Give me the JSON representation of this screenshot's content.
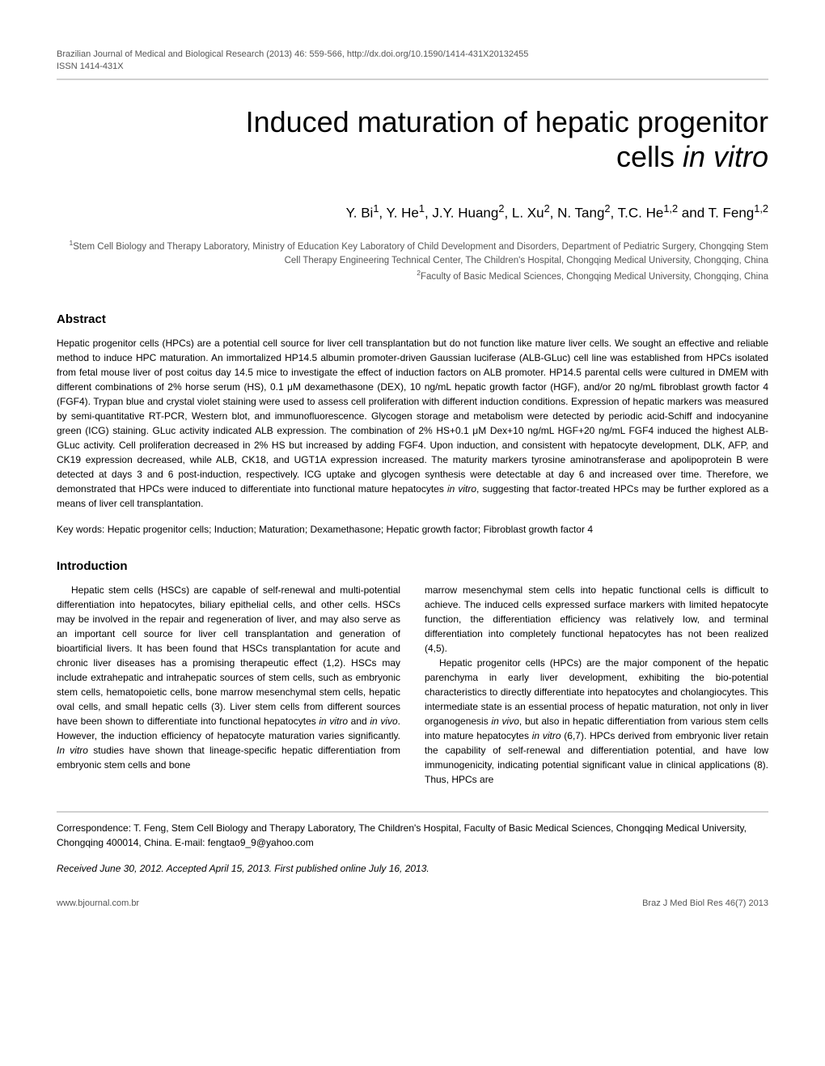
{
  "journal": {
    "header_line1": "Brazilian Journal of Medical and Biological Research (2013) 46: 559-566, http://dx.doi.org/10.1590/1414-431X20132455",
    "header_line2": "ISSN 1414-431X"
  },
  "article": {
    "title_line1": "Induced maturation of hepatic progenitor",
    "title_line2_prefix": "cells ",
    "title_line2_italic": "in vitro",
    "authors_html": "Y. Bi<sup>1</sup>, Y. He<sup>1</sup>, J.Y. Huang<sup>2</sup>, L. Xu<sup>2</sup>, N. Tang<sup>2</sup>, T.C. He<sup>1,2</sup> and T. Feng<sup>1,2</sup>",
    "affiliations": [
      "<sup>1</sup>Stem Cell Biology and Therapy Laboratory, Ministry of Education Key Laboratory of Child Development and Disorders, Department of Pediatric Surgery, Chongqing Stem Cell Therapy Engineering Technical Center, The Children's Hospital, Chongqing Medical University, Chongqing, China",
      "<sup>2</sup>Faculty of Basic Medical Sciences, Chongqing Medical University, Chongqing, China"
    ]
  },
  "abstract": {
    "heading": "Abstract",
    "body": "Hepatic progenitor cells (HPCs) are a potential cell source for liver cell transplantation but do not function like mature liver cells. We sought an effective and reliable method to induce HPC maturation. An immortalized HP14.5 albumin promoter-driven Gaussian luciferase (ALB-GLuc) cell line was established from HPCs isolated from fetal mouse liver of post coitus day 14.5 mice to investigate the effect of induction factors on ALB promoter. HP14.5 parental cells were cultured in DMEM with different combinations of 2% horse serum (HS), 0.1 μM dexamethasone (DEX), 10 ng/mL hepatic growth factor (HGF), and/or 20 ng/mL fibroblast growth factor 4 (FGF4). Trypan blue and crystal violet staining were used to assess cell proliferation with different induction conditions. Expression of hepatic markers was measured by semi-quantitative RT-PCR, Western blot, and immunofluorescence. Glycogen storage and metabolism were detected by periodic acid-Schiff and indocyanine green (ICG) staining. GLuc activity indicated ALB expression. The combination of 2% HS+0.1 μM Dex+10 ng/mL HGF+20 ng/mL FGF4 induced the highest ALB-GLuc activity. Cell proliferation decreased in 2% HS but increased by adding FGF4. Upon induction, and consistent with hepatocyte development, DLK, AFP, and CK19 expression decreased, while ALB, CK18, and UGT1A expression increased. The maturity markers tyrosine aminotransferase and apolipoprotein B were detected at days 3 and 6 post-induction, respectively. ICG uptake and glycogen synthesis were detectable at day 6 and increased over time. Therefore, we demonstrated that HPCs were induced to differentiate into functional mature hepatocytes <span class=\"italic\">in vitro</span>, suggesting that factor-treated HPCs may be further explored as a means of liver cell transplantation.",
    "keywords": "Key words: Hepatic progenitor cells; Induction; Maturation; Dexamethasone; Hepatic growth factor; Fibroblast growth factor 4"
  },
  "introduction": {
    "heading": "Introduction",
    "col1_p1": "Hepatic stem cells (HSCs) are capable of self-renewal and multi-potential differentiation into hepatocytes, biliary epithelial cells, and other cells. HSCs may be involved in the repair and regeneration of liver, and may also serve as an important cell source for liver cell transplantation and generation of bioartificial livers. It has been found that HSCs transplantation for acute and chronic liver diseases has a promising therapeutic effect (1,2). HSCs may include extrahepatic and intrahepatic sources of stem cells, such as embryonic stem cells, hematopoietic cells, bone marrow mesenchymal stem cells, hepatic oval cells, and small hepatic cells (3). Liver stem cells from different sources have been shown to differentiate into functional hepatocytes <span class=\"italic\">in vitro</span> and <span class=\"italic\">in vivo</span>. However, the induction efficiency of hepatocyte maturation varies significantly. <span class=\"italic\">In vitro</span> studies have shown that lineage-specific hepatic differentiation from embryonic stem cells and bone",
    "col2_p1": "marrow mesenchymal stem cells into hepatic functional cells is difficult to achieve. The induced cells expressed surface markers with limited hepatocyte function, the differentiation efficiency was relatively low, and terminal differentiation into completely functional hepatocytes has not been realized (4,5).",
    "col2_p2": "Hepatic progenitor cells (HPCs) are the major component of the hepatic parenchyma in early liver development, exhibiting the bio-potential characteristics to directly differentiate into hepatocytes and cholangiocytes. This intermediate state is an essential process of hepatic maturation, not only in liver organogenesis <span class=\"italic\">in vivo</span>, but also in hepatic differentiation from various stem cells into mature hepatocytes <span class=\"italic\">in vitro</span> (6,7). HPCs derived from embryonic liver retain the capability of self-renewal and differentiation potential, and have low immunogenicity, indicating potential significant value in clinical applications (8). Thus, HPCs are"
  },
  "correspondence": {
    "text": "Correspondence: T. Feng, Stem Cell Biology and Therapy Laboratory, The Children's Hospital, Faculty of Basic Medical Sciences, Chongqing Medical University, Chongqing 400014, China. E-mail: fengtao9_9@yahoo.com"
  },
  "received": {
    "text": "Received June 30, 2012. Accepted April 15, 2013. First published online July 16, 2013."
  },
  "footer": {
    "left": "www.bjournal.com.br",
    "right": "Braz J Med Biol Res 46(7) 2013"
  },
  "colors": {
    "text": "#000000",
    "muted": "#555555",
    "divider": "#d0d0d0",
    "background": "#ffffff"
  },
  "typography": {
    "title_fontsize": 36,
    "authors_fontsize": 17,
    "body_fontsize": 12,
    "heading_fontsize": 15,
    "footer_fontsize": 11
  }
}
